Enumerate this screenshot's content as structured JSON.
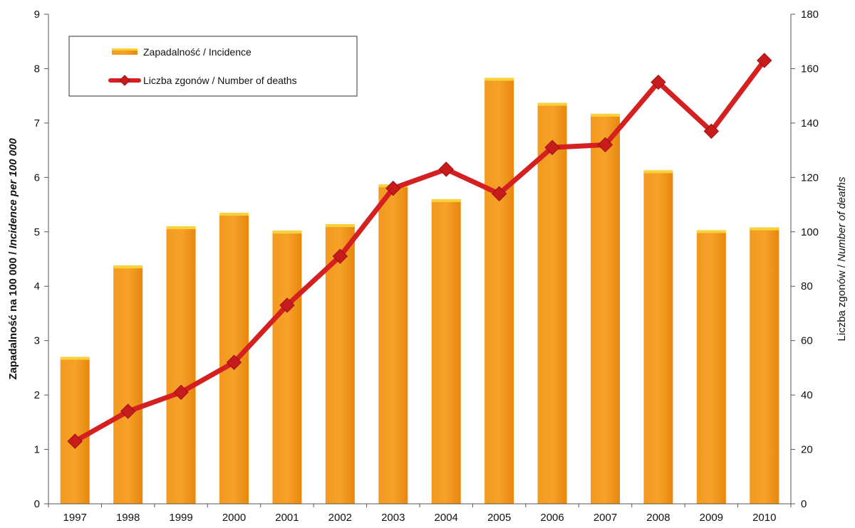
{
  "chart_data": {
    "type": "bar",
    "categories": [
      "1997",
      "1998",
      "1999",
      "2000",
      "2001",
      "2002",
      "2003",
      "2004",
      "2005",
      "2006",
      "2007",
      "2008",
      "2009",
      "2010"
    ],
    "series": [
      {
        "name": "Zapadalność / Incidence",
        "type": "bar",
        "axis": "left",
        "color": "#F5920F",
        "values": [
          2.7,
          4.38,
          5.1,
          5.35,
          5.02,
          5.14,
          5.87,
          5.6,
          7.83,
          7.37,
          7.17,
          6.13,
          5.03,
          5.08
        ]
      },
      {
        "name": "Liczba zgonów / Number of deaths",
        "type": "line",
        "axis": "right",
        "color": "#D42020",
        "values": [
          23,
          34,
          41,
          52,
          73,
          91,
          116,
          123,
          114,
          131,
          132,
          155,
          137,
          163
        ]
      }
    ],
    "y_left": {
      "label_bold": "Zapadalność na 100 000 / ",
      "label_italic": "Incidence per 100 000",
      "range": [
        0,
        9
      ],
      "ticks": [
        "0",
        "1",
        "2",
        "3",
        "4",
        "5",
        "6",
        "7",
        "8",
        "9"
      ]
    },
    "y_right": {
      "label_plain": "Liczba zgonów / ",
      "label_italic": "Number of deaths",
      "range": [
        0,
        180
      ],
      "ticks": [
        "0",
        "20",
        "40",
        "60",
        "80",
        "100",
        "120",
        "140",
        "160",
        "180"
      ]
    },
    "grid": false,
    "legend": "top-left"
  }
}
